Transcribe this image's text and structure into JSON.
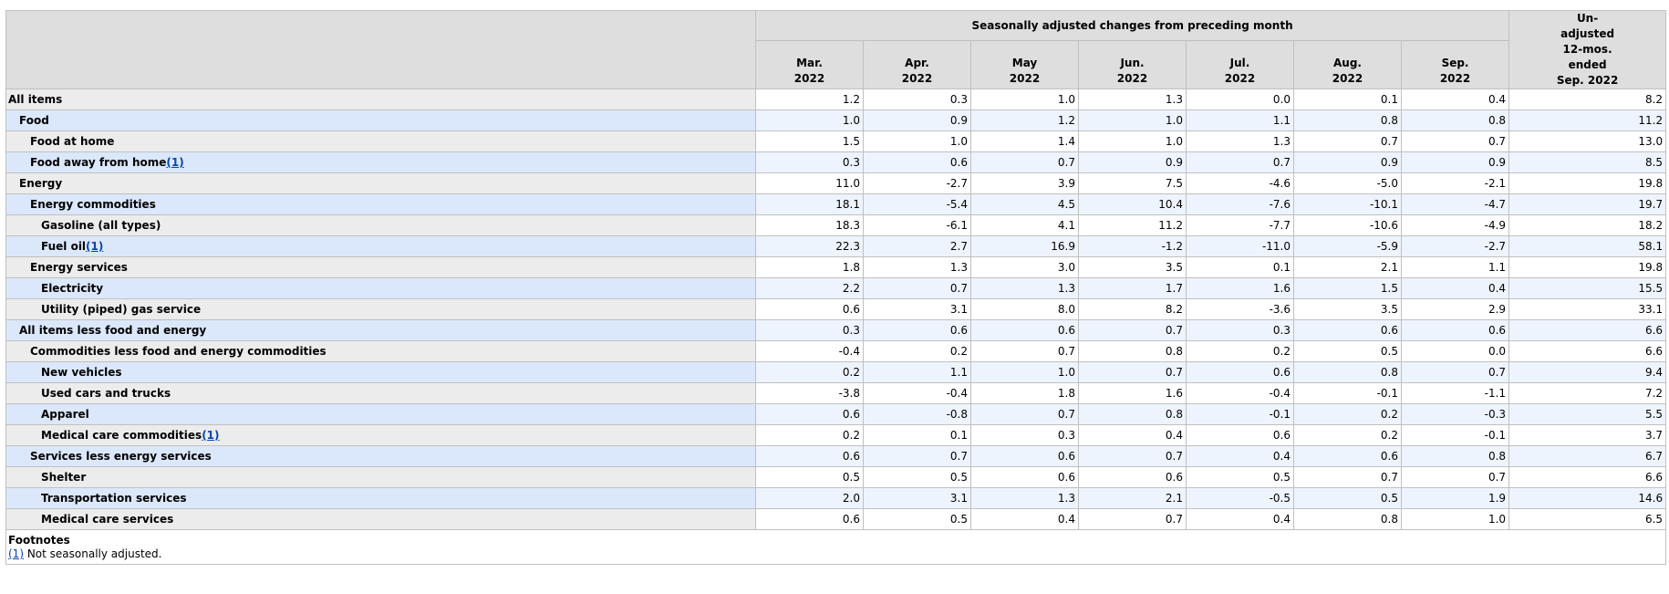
{
  "header": {
    "group_label": "Seasonally adjusted changes from preceding month",
    "unadjusted_label": [
      "Un-",
      "adjusted",
      "12-mos.",
      "ended",
      "Sep. 2022"
    ],
    "months": [
      [
        "Mar.",
        "2022"
      ],
      [
        "Apr.",
        "2022"
      ],
      [
        "May",
        "2022"
      ],
      [
        "Jun.",
        "2022"
      ],
      [
        "Jul.",
        "2022"
      ],
      [
        "Aug.",
        "2022"
      ],
      [
        "Sep.",
        "2022"
      ]
    ]
  },
  "rows": [
    {
      "label": "All items",
      "level": 0,
      "fn": "",
      "values": [
        "1.2",
        "0.3",
        "1.0",
        "1.3",
        "0.0",
        "0.1",
        "0.4",
        "8.2"
      ]
    },
    {
      "label": "Food",
      "level": 1,
      "fn": "",
      "values": [
        "1.0",
        "0.9",
        "1.2",
        "1.0",
        "1.1",
        "0.8",
        "0.8",
        "11.2"
      ]
    },
    {
      "label": "Food at home",
      "level": 2,
      "fn": "",
      "values": [
        "1.5",
        "1.0",
        "1.4",
        "1.0",
        "1.3",
        "0.7",
        "0.7",
        "13.0"
      ]
    },
    {
      "label": "Food away from home",
      "level": 2,
      "fn": "(1)",
      "values": [
        "0.3",
        "0.6",
        "0.7",
        "0.9",
        "0.7",
        "0.9",
        "0.9",
        "8.5"
      ]
    },
    {
      "label": "Energy",
      "level": 1,
      "fn": "",
      "values": [
        "11.0",
        "-2.7",
        "3.9",
        "7.5",
        "-4.6",
        "-5.0",
        "-2.1",
        "19.8"
      ]
    },
    {
      "label": "Energy commodities",
      "level": 2,
      "fn": "",
      "values": [
        "18.1",
        "-5.4",
        "4.5",
        "10.4",
        "-7.6",
        "-10.1",
        "-4.7",
        "19.7"
      ]
    },
    {
      "label": "Gasoline (all types)",
      "level": 3,
      "fn": "",
      "values": [
        "18.3",
        "-6.1",
        "4.1",
        "11.2",
        "-7.7",
        "-10.6",
        "-4.9",
        "18.2"
      ]
    },
    {
      "label": "Fuel oil",
      "level": 3,
      "fn": "(1)",
      "values": [
        "22.3",
        "2.7",
        "16.9",
        "-1.2",
        "-11.0",
        "-5.9",
        "-2.7",
        "58.1"
      ]
    },
    {
      "label": "Energy services",
      "level": 2,
      "fn": "",
      "values": [
        "1.8",
        "1.3",
        "3.0",
        "3.5",
        "0.1",
        "2.1",
        "1.1",
        "19.8"
      ]
    },
    {
      "label": "Electricity",
      "level": 3,
      "fn": "",
      "values": [
        "2.2",
        "0.7",
        "1.3",
        "1.7",
        "1.6",
        "1.5",
        "0.4",
        "15.5"
      ]
    },
    {
      "label": "Utility (piped) gas service",
      "level": 3,
      "fn": "",
      "values": [
        "0.6",
        "3.1",
        "8.0",
        "8.2",
        "-3.6",
        "3.5",
        "2.9",
        "33.1"
      ]
    },
    {
      "label": "All items less food and energy",
      "level": 1,
      "fn": "",
      "values": [
        "0.3",
        "0.6",
        "0.6",
        "0.7",
        "0.3",
        "0.6",
        "0.6",
        "6.6"
      ]
    },
    {
      "label": "Commodities less food and energy commodities",
      "level": 2,
      "fn": "",
      "values": [
        "-0.4",
        "0.2",
        "0.7",
        "0.8",
        "0.2",
        "0.5",
        "0.0",
        "6.6"
      ]
    },
    {
      "label": "New vehicles",
      "level": 3,
      "fn": "",
      "values": [
        "0.2",
        "1.1",
        "1.0",
        "0.7",
        "0.6",
        "0.8",
        "0.7",
        "9.4"
      ]
    },
    {
      "label": "Used cars and trucks",
      "level": 3,
      "fn": "",
      "values": [
        "-3.8",
        "-0.4",
        "1.8",
        "1.6",
        "-0.4",
        "-0.1",
        "-1.1",
        "7.2"
      ]
    },
    {
      "label": "Apparel",
      "level": 3,
      "fn": "",
      "values": [
        "0.6",
        "-0.8",
        "0.7",
        "0.8",
        "-0.1",
        "0.2",
        "-0.3",
        "5.5"
      ]
    },
    {
      "label": "Medical care commodities",
      "level": 3,
      "fn": "(1)",
      "values": [
        "0.2",
        "0.1",
        "0.3",
        "0.4",
        "0.6",
        "0.2",
        "-0.1",
        "3.7"
      ]
    },
    {
      "label": "Services less energy services",
      "level": 2,
      "fn": "",
      "values": [
        "0.6",
        "0.7",
        "0.6",
        "0.7",
        "0.4",
        "0.6",
        "0.8",
        "6.7"
      ]
    },
    {
      "label": "Shelter",
      "level": 3,
      "fn": "",
      "values": [
        "0.5",
        "0.5",
        "0.6",
        "0.6",
        "0.5",
        "0.7",
        "0.7",
        "6.6"
      ]
    },
    {
      "label": "Transportation services",
      "level": 3,
      "fn": "",
      "values": [
        "2.0",
        "3.1",
        "1.3",
        "2.1",
        "-0.5",
        "0.5",
        "1.9",
        "14.6"
      ]
    },
    {
      "label": "Medical care services",
      "level": 3,
      "fn": "",
      "values": [
        "0.6",
        "0.5",
        "0.4",
        "0.7",
        "0.4",
        "0.8",
        "1.0",
        "6.5"
      ]
    }
  ],
  "footnotes": {
    "title": "Footnotes",
    "items": [
      {
        "ref": "(1)",
        "text": " Not seasonally adjusted."
      }
    ]
  }
}
